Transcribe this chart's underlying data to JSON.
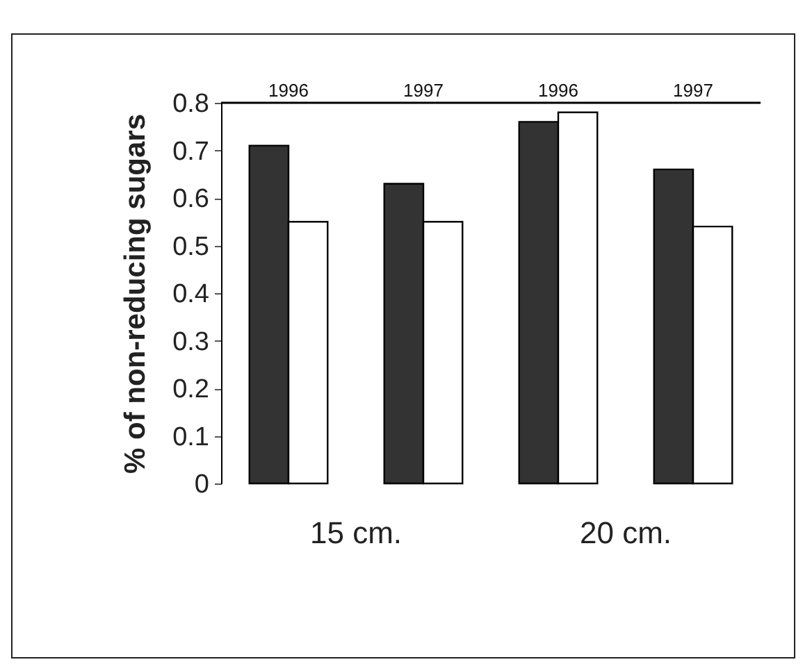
{
  "chart_data": {
    "type": "bar",
    "ylabel": "% of non-reducing sugars",
    "categories": [
      "1996",
      "1997",
      "1996",
      "1997"
    ],
    "series": [
      {
        "color": "#333333",
        "values": [
          0.71,
          0.63,
          0.76,
          0.66
        ]
      },
      {
        "color": "#ffffff",
        "values": [
          0.55,
          0.55,
          0.78,
          0.54
        ]
      }
    ],
    "ylim": [
      0,
      0.8
    ],
    "yticks": [
      0,
      0.1,
      0.2,
      0.3,
      0.4,
      0.5,
      0.6,
      0.7,
      0.8
    ],
    "annotations": [
      "15 cm.",
      "20 cm."
    ],
    "grid": false
  }
}
